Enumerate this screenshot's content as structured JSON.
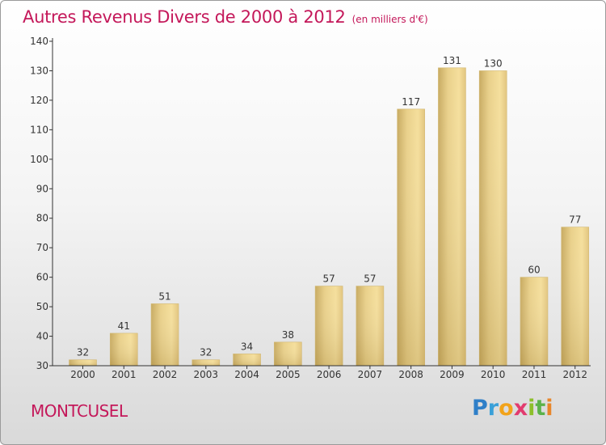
{
  "header": {
    "title": "Autres Revenus Divers de 2000 à 2012",
    "subtitle": "(en milliers d'€)"
  },
  "footer": {
    "town": "MONTCUSEL",
    "logo_text": "Proxiti",
    "logo_icon": "proxiti-logo"
  },
  "colors": {
    "title": "#c4185a",
    "bar_light": "#f5df9c",
    "bar_dark": "#c8ab62",
    "axis": "#333333"
  },
  "chart_data": {
    "type": "bar",
    "title": "Autres Revenus Divers de 2000 à 2012",
    "subtitle": "(en milliers d'€)",
    "categories": [
      "2000",
      "2001",
      "2002",
      "2003",
      "2004",
      "2005",
      "2006",
      "2007",
      "2008",
      "2009",
      "2010",
      "2011",
      "2012"
    ],
    "values": [
      32,
      41,
      51,
      32,
      34,
      38,
      57,
      57,
      117,
      131,
      130,
      60,
      77
    ],
    "ylim": [
      30,
      140
    ],
    "yticks": [
      30,
      40,
      50,
      60,
      70,
      80,
      90,
      100,
      110,
      120,
      130,
      140
    ],
    "grid": false,
    "data_labels": true
  }
}
